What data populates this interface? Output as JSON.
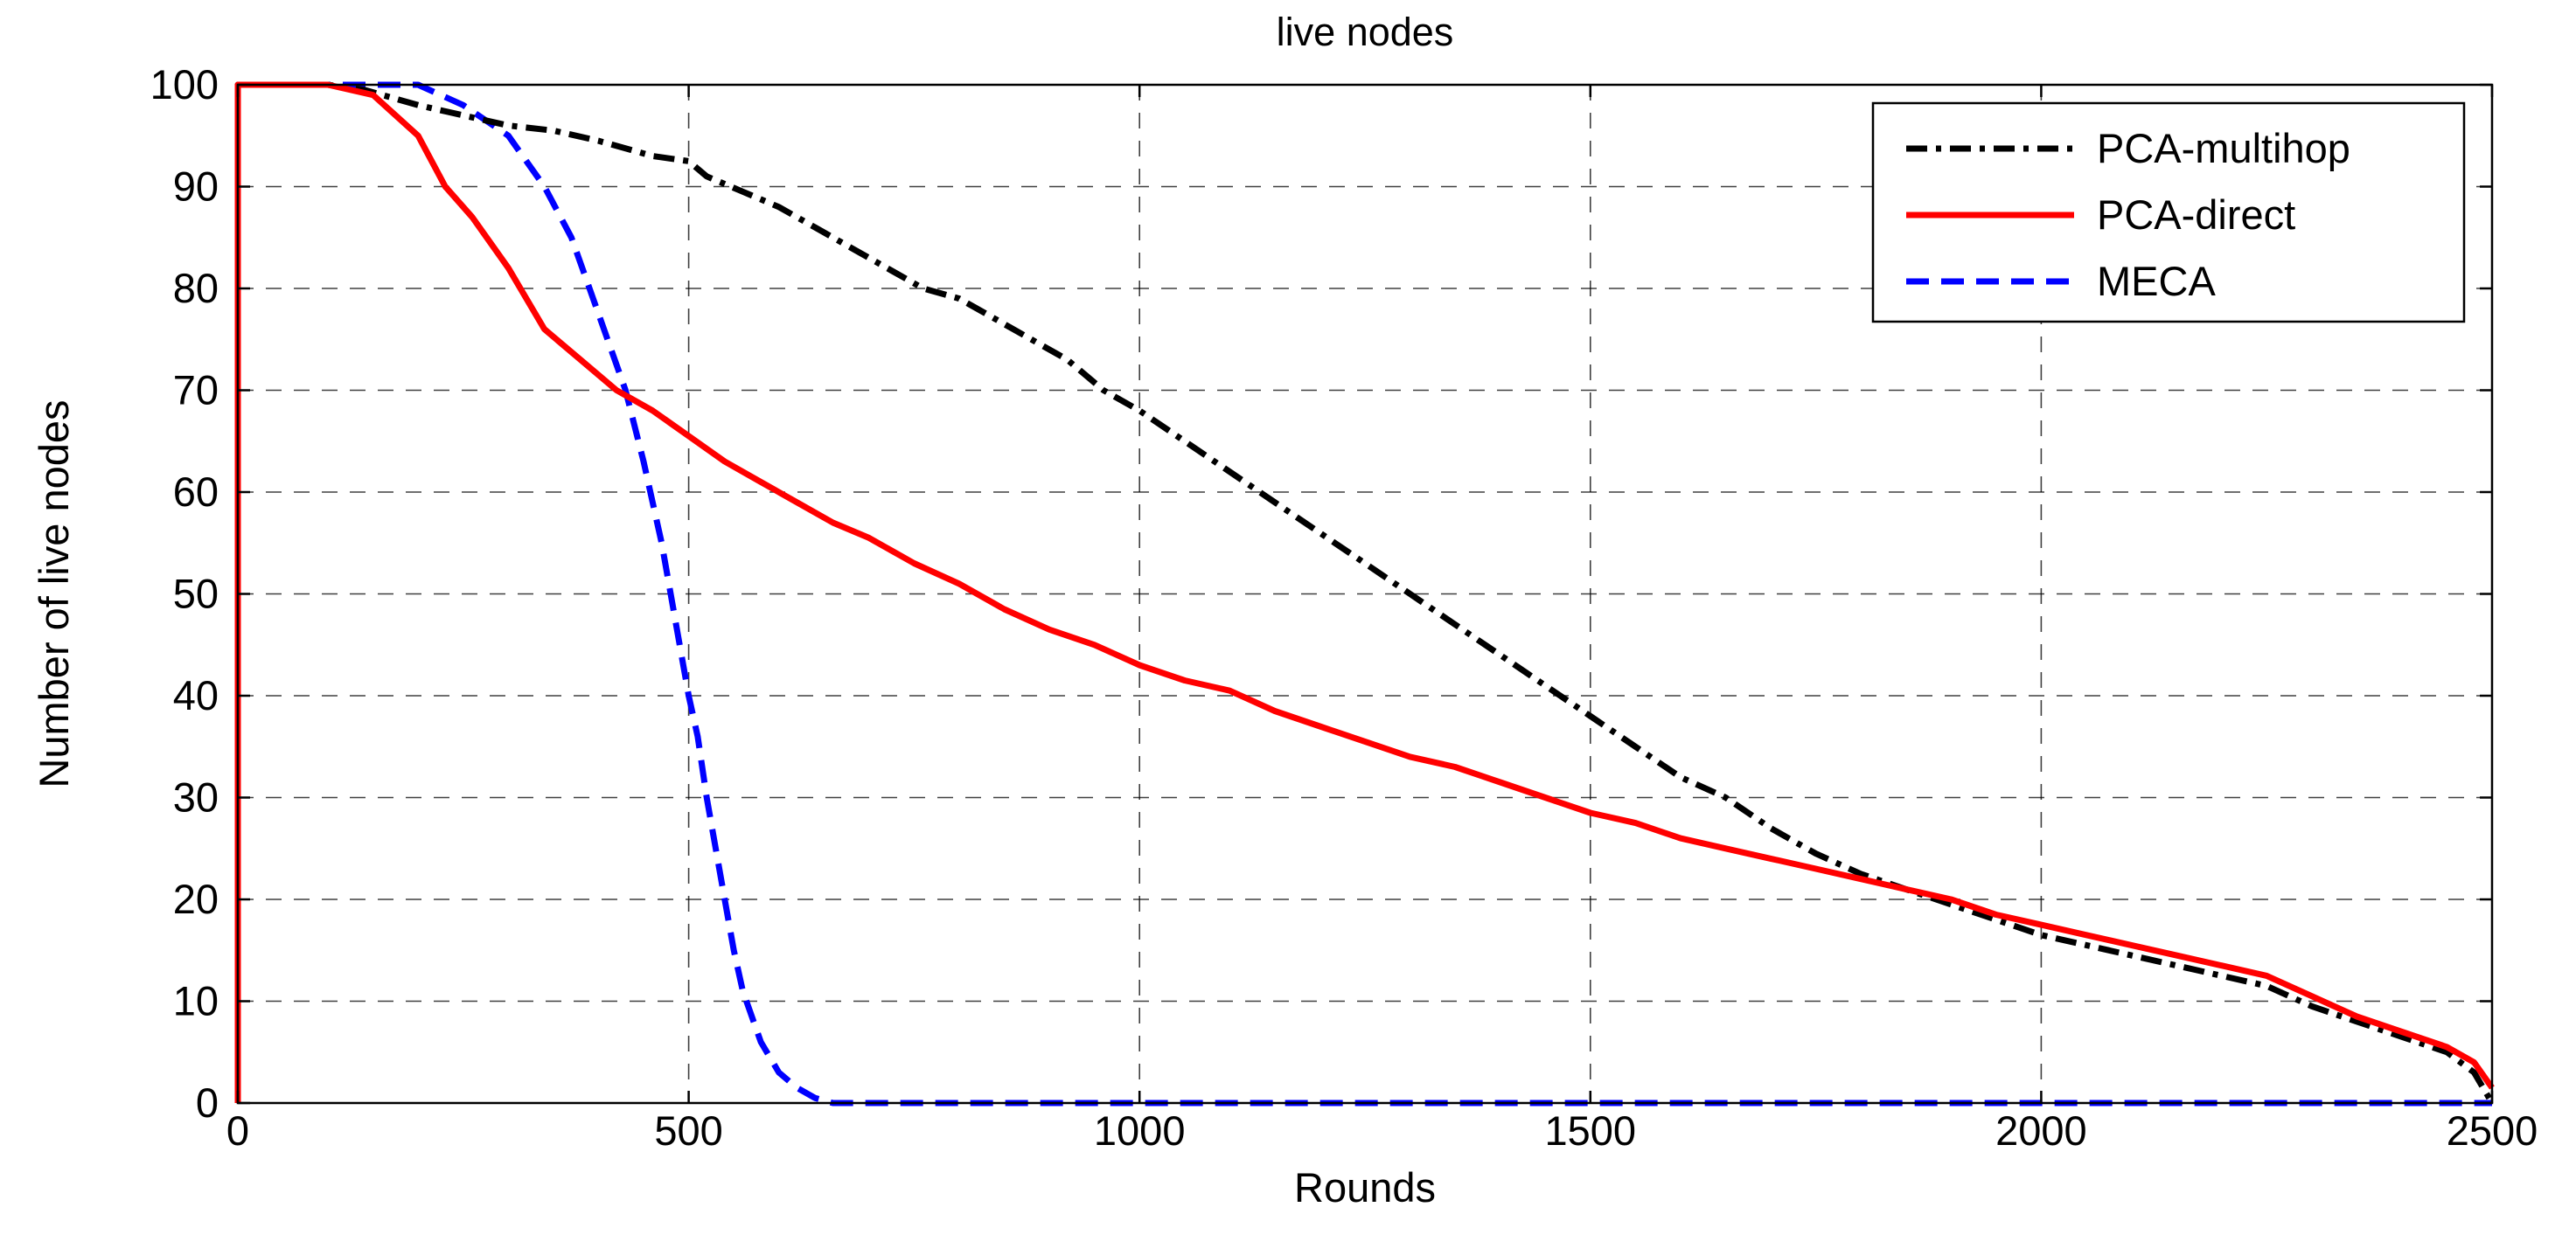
{
  "chart_data": {
    "type": "line",
    "title": "live nodes",
    "xlabel": "Rounds",
    "ylabel": "Number of live nodes",
    "xlim": [
      0,
      2500
    ],
    "ylim": [
      0,
      100
    ],
    "xticks": [
      0,
      500,
      1000,
      1500,
      2000,
      2500
    ],
    "yticks": [
      0,
      10,
      20,
      30,
      40,
      50,
      60,
      70,
      80,
      90,
      100
    ],
    "grid": true,
    "legend_position": "top-right",
    "series": [
      {
        "name": "PCA-multihop",
        "color": "#000000",
        "style": "dash-dot",
        "x": [
          0,
          0,
          100,
          140,
          200,
          250,
          300,
          350,
          400,
          420,
          460,
          500,
          520,
          560,
          600,
          640,
          680,
          720,
          760,
          800,
          840,
          880,
          920,
          960,
          1000,
          1050,
          1100,
          1150,
          1200,
          1250,
          1300,
          1350,
          1400,
          1450,
          1500,
          1550,
          1600,
          1650,
          1700,
          1750,
          1800,
          1850,
          1900,
          1950,
          2000,
          2050,
          2100,
          2150,
          2200,
          2250,
          2300,
          2350,
          2400,
          2450,
          2480,
          2500
        ],
        "y": [
          0,
          100,
          100,
          99.5,
          98,
          97,
          96,
          95.5,
          94.5,
          94,
          93,
          92.5,
          91,
          89.5,
          88,
          86,
          84,
          82,
          80,
          79,
          77,
          75,
          73,
          70,
          68,
          65,
          62,
          59,
          56,
          53,
          50,
          47,
          44,
          41,
          38,
          35,
          32,
          30,
          27,
          24.5,
          22.5,
          21,
          19.5,
          18,
          16.5,
          15.5,
          14.5,
          13.5,
          12.5,
          11.5,
          9.5,
          8,
          6.5,
          5,
          3,
          0
        ]
      },
      {
        "name": "PCA-direct",
        "color": "#ff0000",
        "style": "solid",
        "x": [
          0,
          0,
          100,
          150,
          200,
          230,
          260,
          300,
          340,
          380,
          420,
          460,
          500,
          540,
          580,
          620,
          660,
          700,
          750,
          800,
          850,
          900,
          950,
          1000,
          1050,
          1100,
          1150,
          1200,
          1250,
          1300,
          1350,
          1400,
          1450,
          1500,
          1550,
          1600,
          1650,
          1700,
          1750,
          1800,
          1850,
          1900,
          1950,
          2000,
          2050,
          2100,
          2150,
          2200,
          2250,
          2300,
          2350,
          2400,
          2450,
          2480,
          2500
        ],
        "y": [
          0,
          100,
          100,
          99,
          95,
          90,
          87,
          82,
          76,
          73,
          70,
          68,
          65.5,
          63,
          61,
          59,
          57,
          55.5,
          53,
          51,
          48.5,
          46.5,
          45,
          43,
          41.5,
          40.5,
          38.5,
          37,
          35.5,
          34,
          33,
          31.5,
          30,
          28.5,
          27.5,
          26,
          25,
          24,
          23,
          22,
          21,
          20,
          18.5,
          17.5,
          16.5,
          15.5,
          14.5,
          13.5,
          12.5,
          10.5,
          8.5,
          7,
          5.5,
          4,
          1.5
        ]
      },
      {
        "name": "MECA",
        "color": "#0000ff",
        "style": "dashed",
        "x": [
          0,
          200,
          250,
          300,
          340,
          370,
          390,
          410,
          430,
          450,
          470,
          480,
          490,
          500,
          510,
          520,
          530,
          540,
          550,
          560,
          580,
          600,
          620,
          640,
          660,
          700,
          1000,
          1500,
          2000,
          2500
        ],
        "y": [
          100,
          100,
          98,
          95,
          90,
          85,
          80,
          75,
          70,
          63,
          55,
          50,
          45,
          40,
          36,
          30,
          25,
          20,
          15,
          11,
          6,
          3,
          1.5,
          0.5,
          0,
          0,
          0,
          0,
          0,
          0
        ]
      }
    ]
  }
}
